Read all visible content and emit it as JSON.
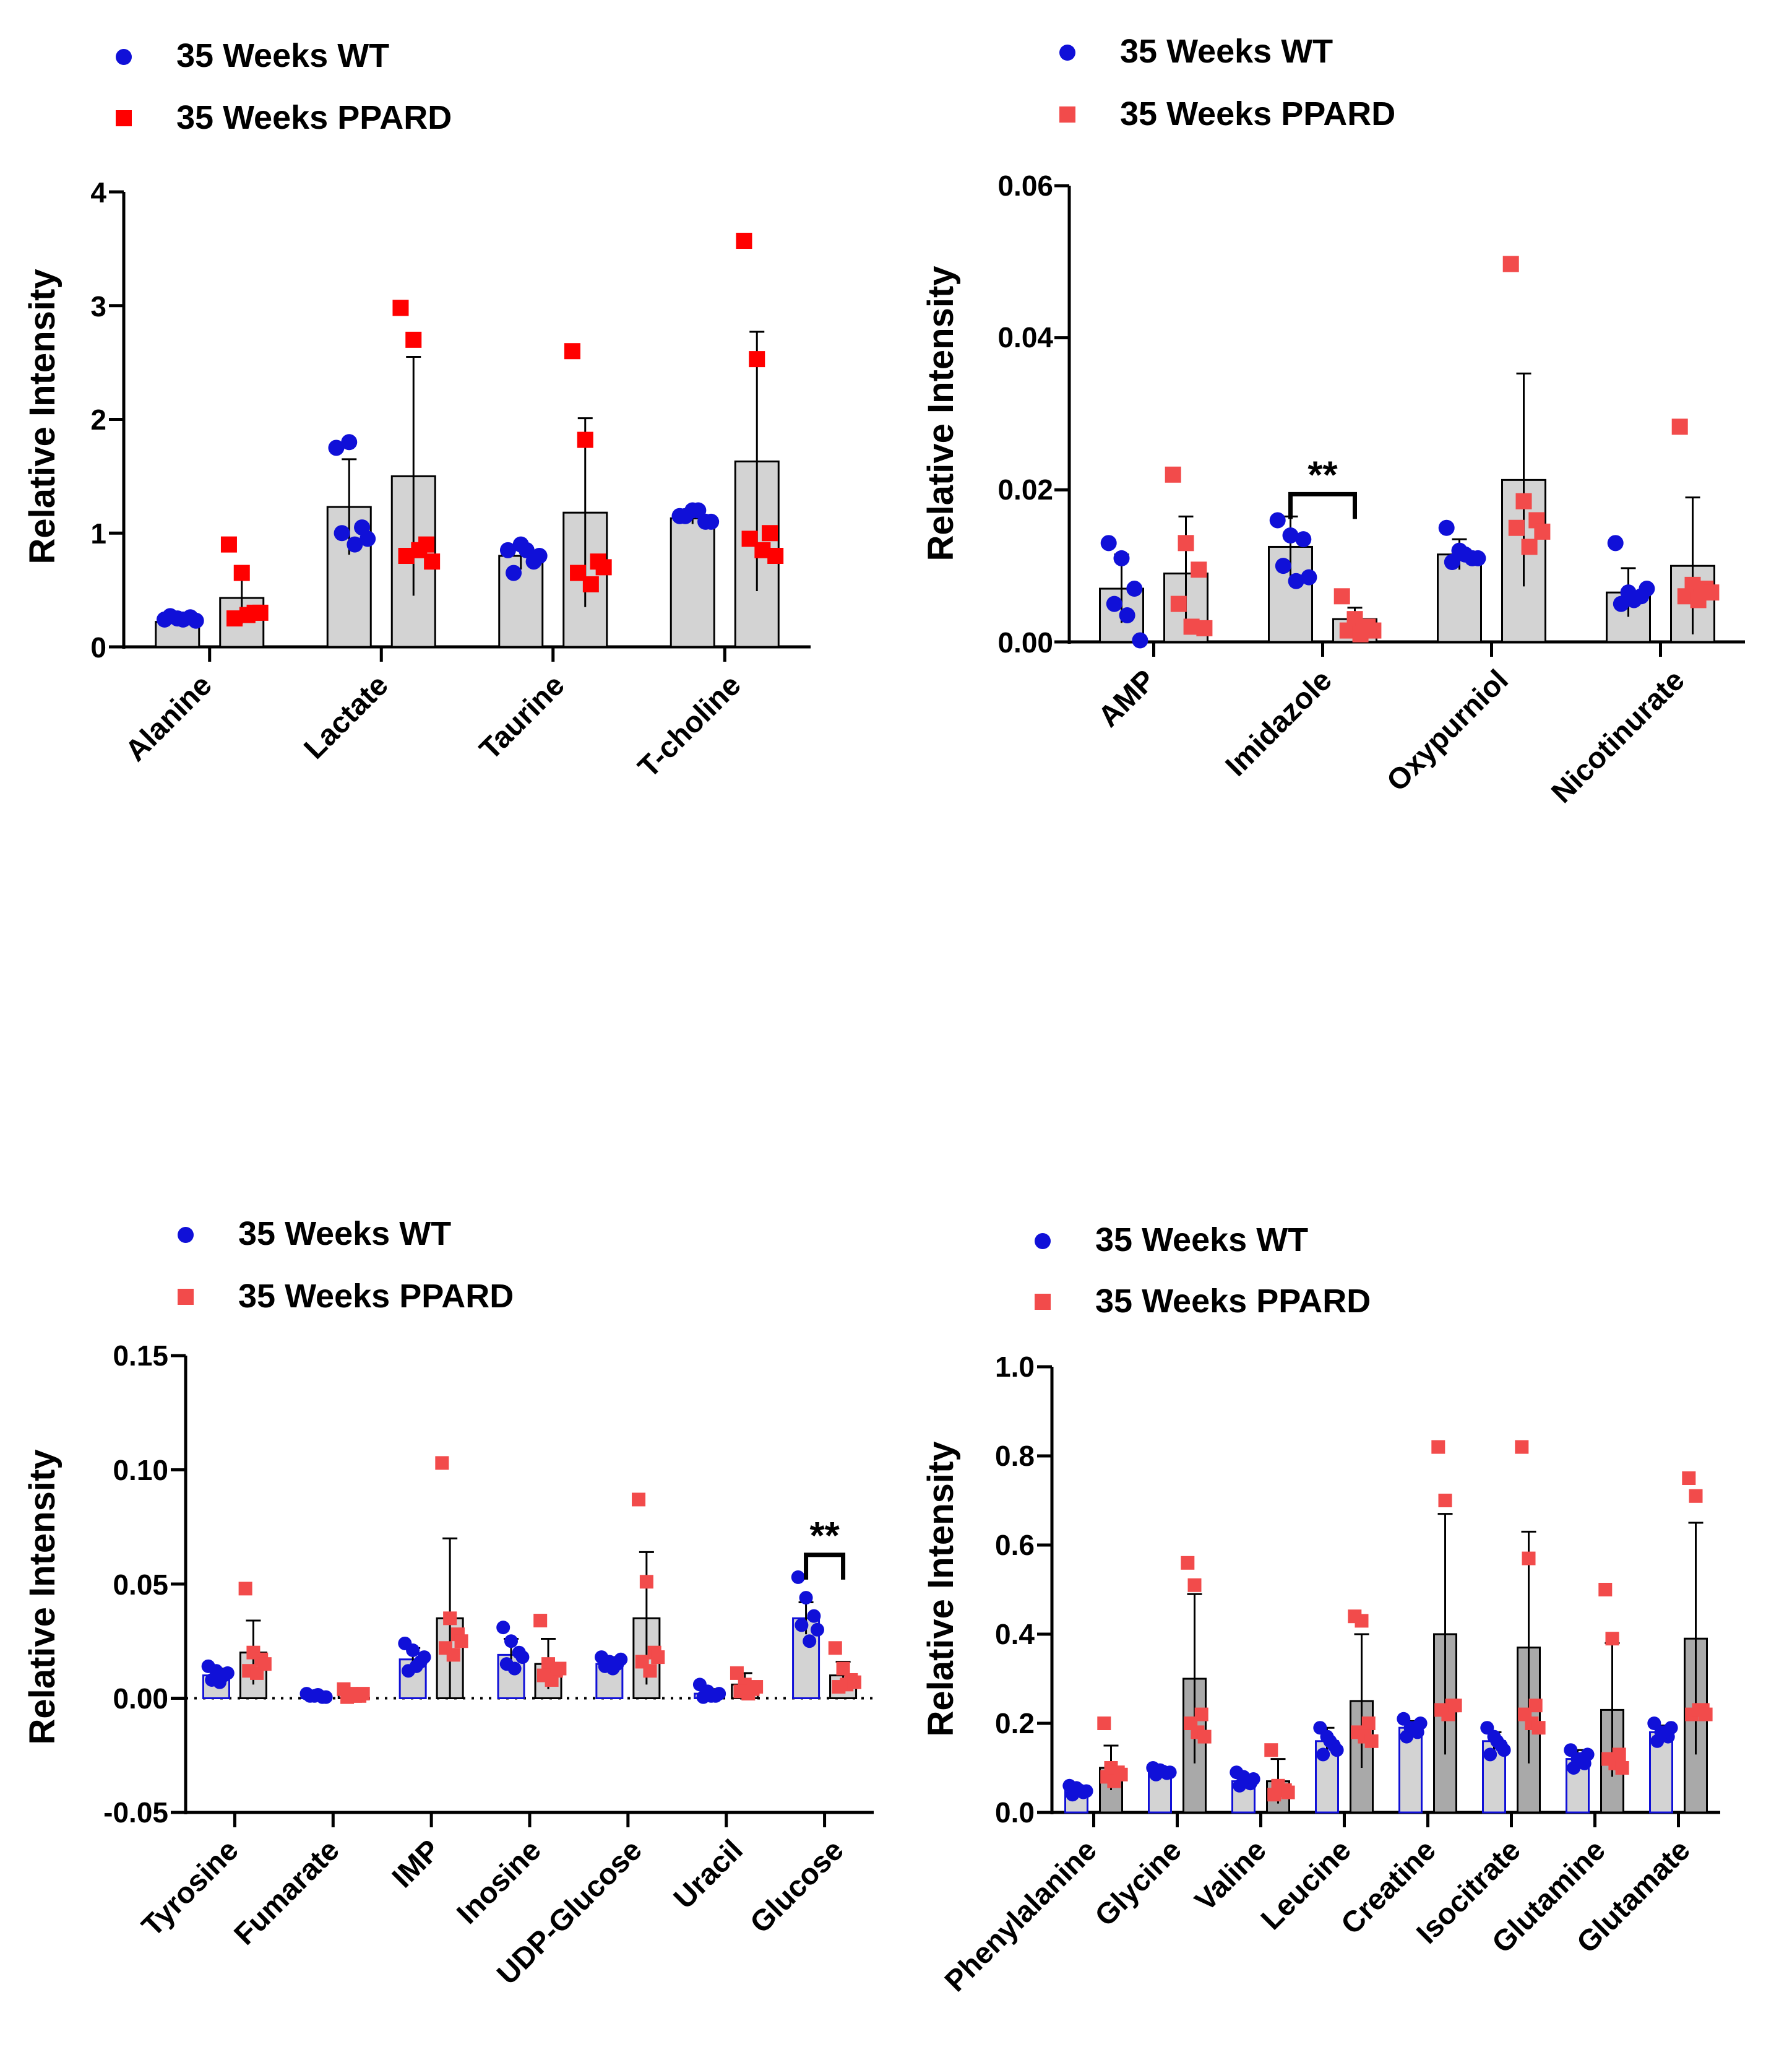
{
  "series_names": [
    "35 Weeks WT",
    "35 Weeks PPARD"
  ],
  "colors": {
    "wt": "#1010d8",
    "ppard": "#ff0000",
    "ppard_light": "#f24b4b",
    "bar_fill": "#d3d3d3",
    "bar_fill_dark": "#a9a9a9",
    "axis": "#000000"
  },
  "chart_data": [
    {
      "id": "a",
      "type": "bar",
      "title": "",
      "ylabel": "Relative Intensity",
      "ylim": [
        0,
        4
      ],
      "yticks": [
        "0",
        "1",
        "2",
        "3",
        "4"
      ],
      "categories": [
        "Alanine",
        "Lactate",
        "Taurine",
        "T-choline"
      ],
      "series": [
        {
          "name": "35 Weeks WT",
          "means": [
            0.22,
            1.23,
            0.8,
            1.13
          ],
          "errors": [
            0.04,
            0.42,
            0.12,
            0.05
          ],
          "points": [
            [
              0.24,
              0.25,
              0.26,
              0.27,
              0.24,
              0.23
            ],
            [
              1.75,
              1.8,
              1.05,
              1.0,
              0.9,
              0.95
            ],
            [
              0.85,
              0.9,
              0.75,
              0.65,
              0.85,
              0.8
            ],
            [
              1.15,
              1.2,
              1.1,
              1.15,
              1.2,
              1.1
            ]
          ]
        },
        {
          "name": "35 Weeks PPARD",
          "means": [
            0.43,
            1.5,
            1.18,
            1.63
          ],
          "errors": [
            0.23,
            1.05,
            0.83,
            1.14
          ],
          "points": [
            [
              0.9,
              0.65,
              0.3,
              0.25,
              0.28,
              0.3
            ],
            [
              2.98,
              2.7,
              0.9,
              0.8,
              0.85,
              0.75
            ],
            [
              2.6,
              1.82,
              0.75,
              0.65,
              0.55,
              0.7
            ],
            [
              3.57,
              2.53,
              1.0,
              0.95,
              0.85,
              0.8
            ]
          ]
        }
      ],
      "annotations": []
    },
    {
      "id": "b",
      "type": "bar",
      "title": "",
      "ylabel": "Relative Intensity",
      "ylim": [
        0,
        0.06
      ],
      "yticks": [
        "0.00",
        "0.02",
        "0.04",
        "0.06"
      ],
      "categories": [
        "AMP",
        "Imidazole",
        "Oxypurniol",
        "Nicotinurate"
      ],
      "series": [
        {
          "name": "35 Weeks WT",
          "means": [
            0.007,
            0.0125,
            0.0115,
            0.0065
          ],
          "errors": [
            0.0045,
            0.004,
            0.002,
            0.0032
          ],
          "points": [
            [
              0.013,
              0.011,
              0.007,
              0.005,
              0.0035,
              0.0002
            ],
            [
              0.016,
              0.014,
              0.0135,
              0.01,
              0.008,
              0.0085
            ],
            [
              0.015,
              0.012,
              0.011,
              0.0105,
              0.0115,
              0.011
            ],
            [
              0.013,
              0.0065,
              0.006,
              0.005,
              0.0055,
              0.007
            ]
          ]
        },
        {
          "name": "35 Weeks PPARD",
          "means": [
            0.009,
            0.003,
            0.0213,
            0.01
          ],
          "errors": [
            0.0075,
            0.0015,
            0.014,
            0.009
          ],
          "points": [
            [
              0.022,
              0.013,
              0.0095,
              0.005,
              0.002,
              0.0018
            ],
            [
              0.006,
              0.003,
              0.002,
              0.0015,
              0.001,
              0.0015
            ],
            [
              0.0497,
              0.0185,
              0.016,
              0.015,
              0.0125,
              0.0145
            ],
            [
              0.0283,
              0.0075,
              0.007,
              0.006,
              0.0055,
              0.0065
            ]
          ]
        }
      ],
      "annotations": [
        {
          "text": "**",
          "category": "Imidazole"
        }
      ]
    },
    {
      "id": "c",
      "type": "bar",
      "title": "",
      "ylabel": "Relative Intensity",
      "ylim": [
        -0.05,
        0.15
      ],
      "yticks": [
        "-0.05",
        "0.00",
        "0.05",
        "0.10",
        "0.15"
      ],
      "categories": [
        "Tyrosine",
        "Fumarate",
        "IMP",
        "Inosine",
        "UDP-Glucose",
        "Uracil",
        "Glucose"
      ],
      "series": [
        {
          "name": "35 Weeks WT",
          "means": [
            0.01,
            0.001,
            0.017,
            0.019,
            0.015,
            0.002,
            0.035
          ],
          "errors": [
            0.003,
            0.001,
            0.005,
            0.007,
            0.003,
            0.002,
            0.007
          ],
          "points": [
            [
              0.014,
              0.012,
              0.01,
              0.008,
              0.007,
              0.011
            ],
            [
              0.002,
              0.001,
              0.0005,
              0.001,
              0.0015,
              0.0005
            ],
            [
              0.024,
              0.021,
              0.016,
              0.012,
              0.014,
              0.018
            ],
            [
              0.031,
              0.025,
              0.02,
              0.015,
              0.013,
              0.018
            ],
            [
              0.018,
              0.016,
              0.015,
              0.014,
              0.013,
              0.017
            ],
            [
              0.006,
              0.003,
              0.001,
              0.0005,
              0.001,
              0.002
            ],
            [
              0.053,
              0.044,
              0.036,
              0.032,
              0.025,
              0.03
            ]
          ]
        },
        {
          "name": "35 Weeks PPARD",
          "means": [
            0.02,
            0.002,
            0.035,
            0.015,
            0.035,
            0.006,
            0.01
          ],
          "errors": [
            0.014,
            0.001,
            0.035,
            0.011,
            0.029,
            0.005,
            0.006
          ],
          "points": [
            [
              0.048,
              0.02,
              0.017,
              0.012,
              0.011,
              0.015
            ],
            [
              0.004,
              0.002,
              0.001,
              0.0005,
              0.001,
              0.002
            ],
            [
              0.103,
              0.035,
              0.028,
              0.022,
              0.019,
              0.025
            ],
            [
              0.034,
              0.015,
              0.012,
              0.01,
              0.008,
              0.013
            ],
            [
              0.087,
              0.051,
              0.02,
              0.016,
              0.012,
              0.018
            ],
            [
              0.011,
              0.006,
              0.004,
              0.003,
              0.002,
              0.005
            ],
            [
              0.022,
              0.013,
              0.008,
              0.005,
              0.006,
              0.007
            ]
          ]
        }
      ],
      "annotations": [
        {
          "text": "**",
          "category": "Glucose"
        }
      ]
    },
    {
      "id": "d",
      "type": "bar",
      "title": "",
      "ylabel": "Relative Intensity",
      "ylim": [
        0,
        1.0
      ],
      "yticks": [
        "0.0",
        "0.2",
        "0.4",
        "0.6",
        "0.8",
        "1.0"
      ],
      "categories": [
        "Phenylalanine",
        "Glycine",
        "Valine",
        "Leucine",
        "Creatine",
        "Isocitrate",
        "Glutamine",
        "Glutamate"
      ],
      "series": [
        {
          "name": "35 Weeks WT",
          "means": [
            0.05,
            0.09,
            0.07,
            0.16,
            0.19,
            0.16,
            0.12,
            0.18
          ],
          "errors": [
            0.008,
            0.008,
            0.015,
            0.03,
            0.015,
            0.02,
            0.02,
            0.015
          ],
          "points": [
            [
              0.06,
              0.055,
              0.045,
              0.04,
              0.05,
              0.048
            ],
            [
              0.1,
              0.095,
              0.088,
              0.085,
              0.092,
              0.09
            ],
            [
              0.09,
              0.08,
              0.065,
              0.06,
              0.07,
              0.075
            ],
            [
              0.19,
              0.17,
              0.15,
              0.13,
              0.16,
              0.14
            ],
            [
              0.21,
              0.19,
              0.18,
              0.17,
              0.19,
              0.2
            ],
            [
              0.19,
              0.17,
              0.15,
              0.13,
              0.16,
              0.14
            ],
            [
              0.14,
              0.12,
              0.11,
              0.1,
              0.12,
              0.13
            ],
            [
              0.2,
              0.18,
              0.17,
              0.16,
              0.18,
              0.19
            ]
          ]
        },
        {
          "name": "35 Weeks PPARD",
          "means": [
            0.1,
            0.3,
            0.07,
            0.25,
            0.4,
            0.37,
            0.23,
            0.39
          ],
          "errors": [
            0.05,
            0.19,
            0.05,
            0.15,
            0.27,
            0.26,
            0.15,
            0.26
          ],
          "points": [
            [
              0.2,
              0.1,
              0.09,
              0.08,
              0.07,
              0.085
            ],
            [
              0.56,
              0.51,
              0.22,
              0.2,
              0.18,
              0.17
            ],
            [
              0.14,
              0.06,
              0.05,
              0.04,
              0.05,
              0.045
            ],
            [
              0.44,
              0.43,
              0.2,
              0.18,
              0.17,
              0.16
            ],
            [
              0.82,
              0.7,
              0.24,
              0.23,
              0.22,
              0.24
            ],
            [
              0.82,
              0.57,
              0.24,
              0.22,
              0.2,
              0.19
            ],
            [
              0.5,
              0.39,
              0.13,
              0.12,
              0.11,
              0.1
            ],
            [
              0.75,
              0.71,
              0.23,
              0.22,
              0.23,
              0.22
            ]
          ]
        }
      ],
      "annotations": []
    }
  ]
}
